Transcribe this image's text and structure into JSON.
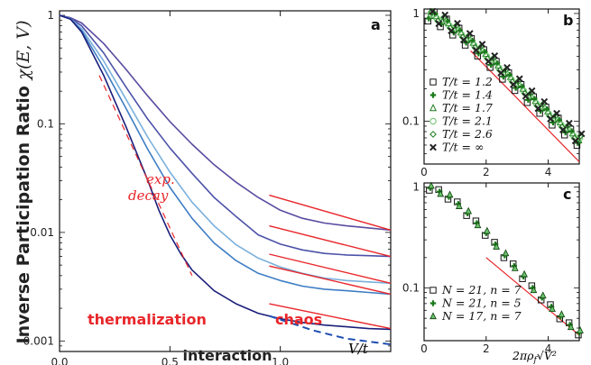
{
  "figure": {
    "ylabel_bold": "Inverse Participation Ratio",
    "ylabel_math": "χ(E, V)",
    "xlabel_bold": "interaction",
    "xlabel_math": "V/t",
    "b_xlabel_math": "2πρ",
    "b_xlabel_sub": "f",
    "b_xlabel_sqrt": "√V²",
    "colors": {
      "curve_dark": "#1a1f7a",
      "curve_light": "#7ab0dc",
      "red": "#e8262a",
      "blue_dash": "#1f4fb0",
      "green": "#1b7a1b",
      "light_green": "#6ac46a"
    }
  },
  "chart_data": [
    {
      "panel": "a",
      "type": "line",
      "xlim": [
        0,
        1.5
      ],
      "ylim": [
        0.0008,
        1.1
      ],
      "yscale": "log",
      "xticks": [
        "0.0",
        "0.5",
        "1.0"
      ],
      "yticks": [
        "1",
        "0.1",
        "0.01",
        "0.001"
      ],
      "annotations": {
        "exp_line1": "exp.",
        "exp_line2": "decay",
        "left": "thermalization",
        "right": "chaos"
      },
      "series": [
        {
          "color": "#5a4aa0",
          "x": [
            0,
            0.05,
            0.1,
            0.2,
            0.3,
            0.4,
            0.5,
            0.6,
            0.7,
            0.8,
            0.9,
            1.0,
            1.1,
            1.2,
            1.3,
            1.4,
            1.5
          ],
          "y": [
            1,
            0.95,
            0.85,
            0.55,
            0.32,
            0.18,
            0.105,
            0.065,
            0.042,
            0.029,
            0.021,
            0.016,
            0.0135,
            0.0122,
            0.0115,
            0.011,
            0.0105
          ]
        },
        {
          "color": "#4c52a8",
          "x": [
            0,
            0.05,
            0.1,
            0.2,
            0.3,
            0.4,
            0.5,
            0.6,
            0.7,
            0.8,
            0.9,
            1.0,
            1.1,
            1.2,
            1.3,
            1.4,
            1.5
          ],
          "y": [
            1,
            0.94,
            0.8,
            0.45,
            0.22,
            0.11,
            0.06,
            0.035,
            0.021,
            0.014,
            0.0095,
            0.0078,
            0.0069,
            0.0064,
            0.0062,
            0.0061,
            0.006
          ]
        },
        {
          "color": "#7ab0dc",
          "x": [
            0,
            0.05,
            0.1,
            0.2,
            0.3,
            0.4,
            0.5,
            0.6,
            0.7,
            0.8,
            0.9,
            1.0,
            1.1,
            1.2,
            1.3,
            1.4,
            1.5
          ],
          "y": [
            1,
            0.93,
            0.75,
            0.38,
            0.17,
            0.075,
            0.036,
            0.019,
            0.0115,
            0.0077,
            0.0058,
            0.0048,
            0.0042,
            0.0038,
            0.0036,
            0.0035,
            0.0034
          ]
        },
        {
          "color": "#3e7dc4",
          "x": [
            0,
            0.05,
            0.1,
            0.2,
            0.3,
            0.4,
            0.5,
            0.6,
            0.7,
            0.8,
            0.9,
            1.0,
            1.1,
            1.2,
            1.3,
            1.4,
            1.5
          ],
          "y": [
            1,
            0.92,
            0.72,
            0.33,
            0.14,
            0.058,
            0.026,
            0.0135,
            0.008,
            0.0055,
            0.0042,
            0.0036,
            0.0032,
            0.003,
            0.0029,
            0.0028,
            0.0027
          ]
        },
        {
          "color": "#1a1f7a",
          "x": [
            0,
            0.05,
            0.1,
            0.2,
            0.3,
            0.4,
            0.45,
            0.5,
            0.55,
            0.6,
            0.7,
            0.8,
            0.9,
            1.0,
            1.1,
            1.2,
            1.3,
            1.4,
            1.5
          ],
          "y": [
            1,
            0.92,
            0.7,
            0.28,
            0.095,
            0.03,
            0.016,
            0.0095,
            0.0063,
            0.0045,
            0.0029,
            0.0022,
            0.0018,
            0.0016,
            0.00148,
            0.0014,
            0.00135,
            0.0013,
            0.00128
          ]
        }
      ],
      "exp_decay": {
        "x": [
          0.18,
          0.6
        ],
        "y": [
          0.28,
          0.004
        ]
      },
      "chaos_red_segments": [
        {
          "x": [
            0.95,
            1.5
          ],
          "y": [
            0.022,
            0.0105
          ]
        },
        {
          "x": [
            0.95,
            1.5
          ],
          "y": [
            0.0115,
            0.006
          ]
        },
        {
          "x": [
            0.95,
            1.5
          ],
          "y": [
            0.0063,
            0.0034
          ]
        },
        {
          "x": [
            0.95,
            1.5
          ],
          "y": [
            0.0049,
            0.0027
          ]
        },
        {
          "x": [
            0.95,
            1.5
          ],
          "y": [
            0.0022,
            0.0013
          ]
        }
      ],
      "chaos_blue_dashed": {
        "x": [
          0.95,
          1.15,
          1.3,
          1.5
        ],
        "y": [
          0.0017,
          0.00125,
          0.00105,
          0.00093
        ]
      }
    },
    {
      "panel": "b",
      "type": "scatter",
      "xlim": [
        0,
        5
      ],
      "ylim": [
        0.04,
        1.1
      ],
      "yscale": "log",
      "xticks": [
        "0",
        "2",
        "4"
      ],
      "yticks": [
        "1",
        "0.1"
      ],
      "legend": [
        "T/t = 1.2",
        "T/t = 1.4",
        "T/t = 1.7",
        "T/t = 2.1",
        "T/t = 2.6",
        "T/t = ∞"
      ],
      "reference_line": {
        "x": [
          1.5,
          5
        ],
        "y": [
          0.45,
          0.042
        ]
      },
      "series_points": {
        "x": [
          0.2,
          0.4,
          0.6,
          0.8,
          1.0,
          1.2,
          1.4,
          1.6,
          1.8,
          2.0,
          2.2,
          2.4,
          2.6,
          2.8,
          3.0,
          3.2,
          3.4,
          3.6,
          3.8,
          4.0,
          4.2,
          4.4,
          4.6,
          4.8,
          5.0
        ],
        "y": [
          0.97,
          0.92,
          0.86,
          0.79,
          0.72,
          0.65,
          0.58,
          0.52,
          0.46,
          0.41,
          0.36,
          0.32,
          0.28,
          0.25,
          0.22,
          0.195,
          0.17,
          0.15,
          0.135,
          0.12,
          0.105,
          0.095,
          0.085,
          0.075,
          0.068
        ]
      }
    },
    {
      "panel": "c",
      "type": "scatter",
      "xlim": [
        0,
        5
      ],
      "ylim": [
        0.03,
        1.1
      ],
      "yscale": "log",
      "xticks": [
        "0",
        "2",
        "4"
      ],
      "yticks": [
        "1",
        "0.1"
      ],
      "legend": [
        "N = 21, n = 7",
        "N = 21, n = 5",
        "N = 17, n = 7"
      ],
      "reference_line": {
        "x": [
          2.0,
          5
        ],
        "y": [
          0.2,
          0.034
        ]
      },
      "series_points": {
        "x": [
          0.2,
          0.5,
          0.8,
          1.1,
          1.4,
          1.7,
          2.0,
          2.3,
          2.6,
          2.9,
          3.2,
          3.5,
          3.8,
          4.1,
          4.4,
          4.7,
          5.0
        ],
        "y": [
          0.98,
          0.9,
          0.8,
          0.68,
          0.55,
          0.44,
          0.35,
          0.27,
          0.21,
          0.165,
          0.13,
          0.1,
          0.08,
          0.065,
          0.052,
          0.043,
          0.036
        ]
      }
    }
  ]
}
